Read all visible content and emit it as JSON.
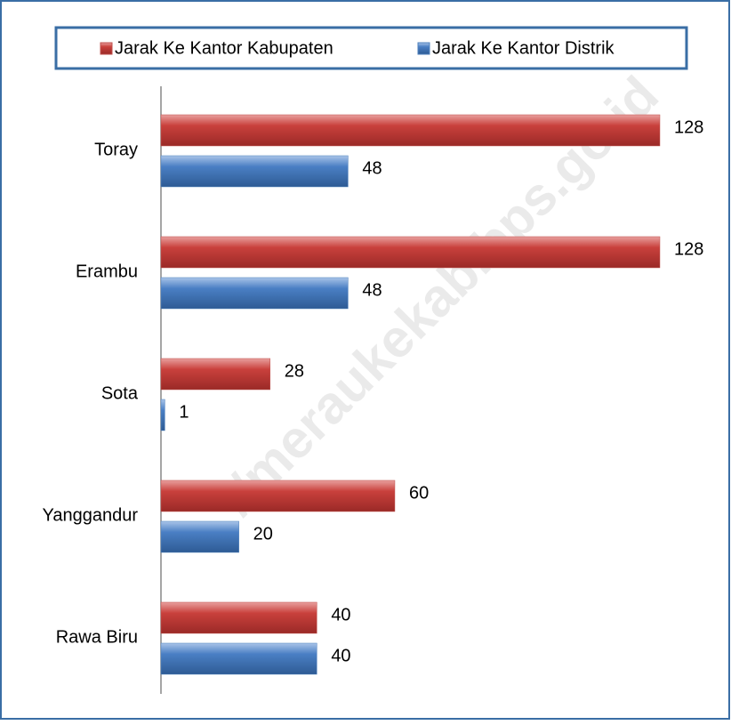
{
  "chart_data": {
    "type": "bar",
    "orientation": "horizontal",
    "categories": [
      "Toray",
      "Erambu",
      "Sota",
      "Yanggandur",
      "Rawa Biru"
    ],
    "series": [
      {
        "name": "Jarak Ke Kantor Kabupaten",
        "color": "#c0504d",
        "values": [
          128,
          128,
          28,
          60,
          40
        ]
      },
      {
        "name": "Jarak Ke Kantor Distrik",
        "color": "#4f81bd",
        "values": [
          48,
          48,
          1,
          20,
          40
        ]
      }
    ],
    "legend": "top",
    "watermark": "//meraukekab.bps.go.id"
  }
}
